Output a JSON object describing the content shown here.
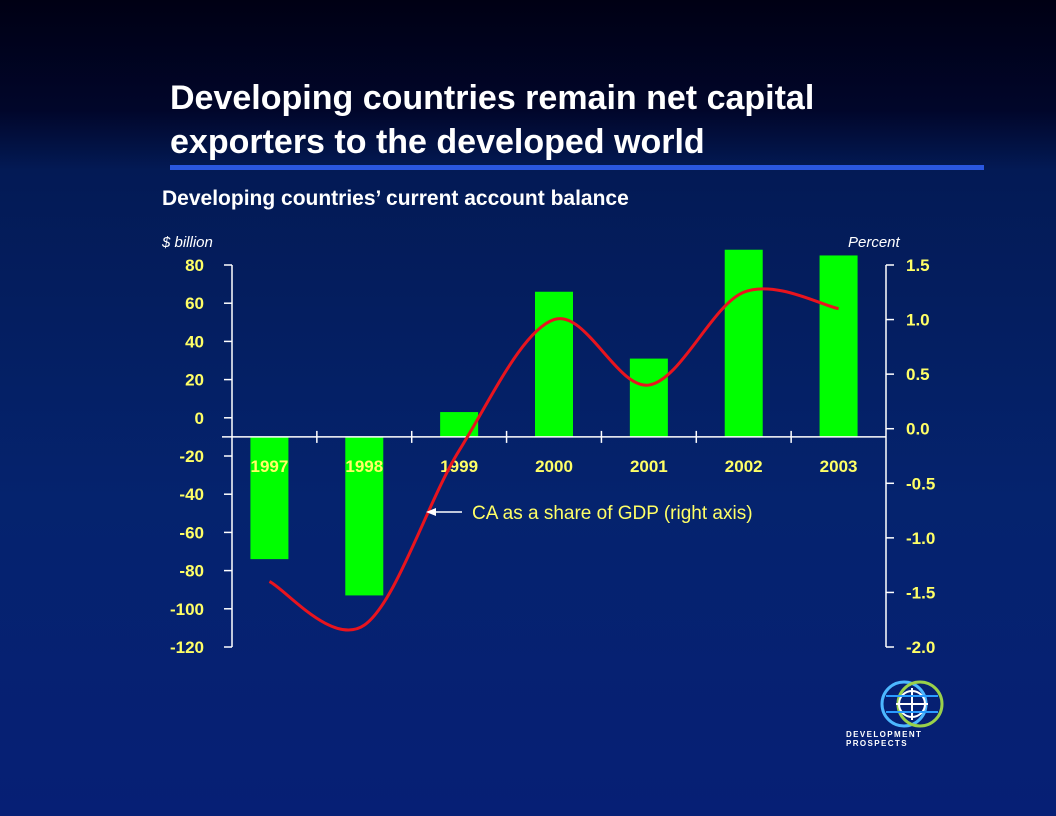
{
  "slide": {
    "title_line1": "Developing countries remain net capital",
    "title_line2": "exporters to the developed world",
    "subtitle": "Developing countries’ current account balance",
    "unit_left": "$ billion",
    "unit_right": "Percent",
    "logo_text": "DEVELOPMENT PROSPECTS",
    "colors": {
      "title_rule": "#2a57e0",
      "bars": "#00ff00",
      "line": "#e8141e",
      "axis_labels": "#ffff66",
      "annotation": "#ffff66"
    }
  },
  "chart_data": {
    "type": "bar",
    "categories": [
      "1997",
      "1998",
      "1999",
      "2000",
      "2001",
      "2002",
      "2003"
    ],
    "series": [
      {
        "values": [
          -74,
          -93,
          3,
          66,
          31,
          88,
          85
        ],
        "axis": "left"
      },
      {
        "values": [
          -1.4,
          -1.8,
          -0.2,
          1.0,
          0.4,
          1.25,
          1.1
        ],
        "axis": "right",
        "mark": "line"
      }
    ],
    "left_axis": {
      "ylim": [
        -120,
        80
      ],
      "ticks": [
        "80",
        "60",
        "40",
        "20",
        "0",
        "-20",
        "-40",
        "-60",
        "-80",
        "-100",
        "-120"
      ],
      "tick_values": [
        80,
        60,
        40,
        20,
        0,
        -20,
        -40,
        -60,
        -80,
        -100,
        -120
      ]
    },
    "right_axis": {
      "ylim": [
        -2.0,
        1.5
      ],
      "ticks": [
        "1.5",
        "1.0",
        "0.5",
        "0.0",
        "-0.5",
        "-1.0",
        "-1.5",
        "-2.0"
      ],
      "tick_values": [
        1.5,
        1.0,
        0.5,
        0.0,
        -0.5,
        -1.0,
        -1.5,
        -2.0
      ]
    },
    "annotations": [
      {
        "text": "CA as a share of GDP (right axis)",
        "points_to_category": "1999"
      }
    ],
    "grid": false,
    "legend": "none"
  }
}
